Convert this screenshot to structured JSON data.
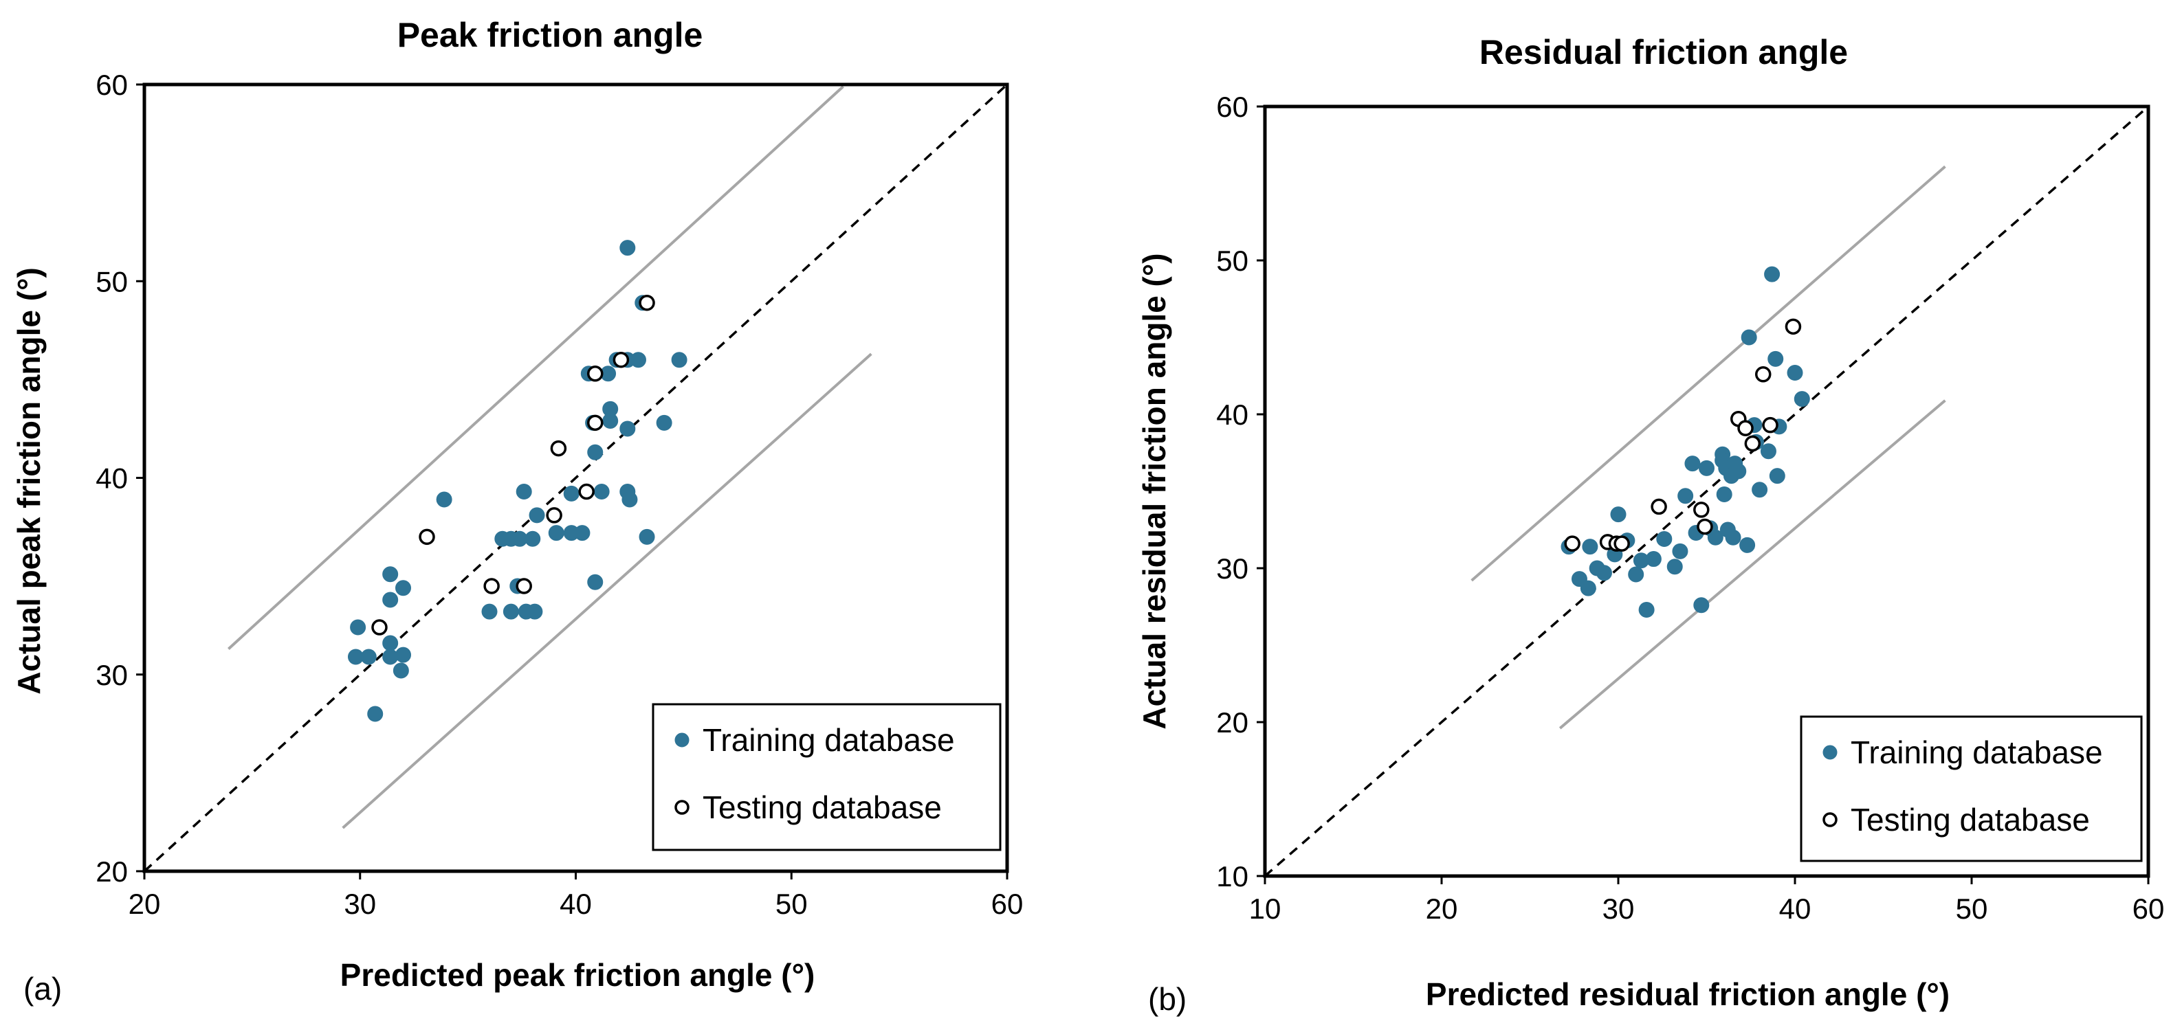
{
  "colors": {
    "training": "#2e7496",
    "testing_fill": "#ffffff",
    "testing_stroke": "#000000",
    "band": "#a6a6a6",
    "identity": "#000000",
    "axis": "#000000"
  },
  "chart_data": [
    {
      "type": "scatter",
      "panel_label": "(a)",
      "title": "Peak friction angle",
      "xlabel": "Predicted peak friction angle (°)",
      "ylabel": "Actual peak friction angle (°)",
      "xlim": [
        20,
        60
      ],
      "ylim": [
        20,
        60
      ],
      "xticks": [
        20,
        30,
        40,
        50,
        60
      ],
      "yticks": [
        20,
        30,
        40,
        50,
        60
      ],
      "legend_position": "bottom-right",
      "identity_line": {
        "x": [
          20,
          60
        ],
        "y": [
          20,
          60
        ]
      },
      "band_lines": [
        {
          "x": [
            23.9,
            52.4
          ],
          "y": [
            31.3,
            59.9
          ]
        },
        {
          "x": [
            29.2,
            53.7
          ],
          "y": [
            22.2,
            46.3
          ]
        }
      ],
      "series": [
        {
          "name": "Training database",
          "marker": "filled",
          "points": [
            [
              29.9,
              32.4
            ],
            [
              29.8,
              30.9
            ],
            [
              30.4,
              30.9
            ],
            [
              30.7,
              28.0
            ],
            [
              31.4,
              35.1
            ],
            [
              31.4,
              33.8
            ],
            [
              31.4,
              31.6
            ],
            [
              31.4,
              30.9
            ],
            [
              31.9,
              30.2
            ],
            [
              32.0,
              31.0
            ],
            [
              32.0,
              34.4
            ],
            [
              33.9,
              38.9
            ],
            [
              36.0,
              33.2
            ],
            [
              36.6,
              36.9
            ],
            [
              37.0,
              36.9
            ],
            [
              37.0,
              33.2
            ],
            [
              37.3,
              34.5
            ],
            [
              37.4,
              36.9
            ],
            [
              37.6,
              39.3
            ],
            [
              37.7,
              33.2
            ],
            [
              38.1,
              33.2
            ],
            [
              38.0,
              36.9
            ],
            [
              38.2,
              38.1
            ],
            [
              39.1,
              37.2
            ],
            [
              39.8,
              39.2
            ],
            [
              39.8,
              37.2
            ],
            [
              40.3,
              37.2
            ],
            [
              40.6,
              45.3
            ],
            [
              40.8,
              42.8
            ],
            [
              40.9,
              41.3
            ],
            [
              40.9,
              34.7
            ],
            [
              41.2,
              39.3
            ],
            [
              41.5,
              45.3
            ],
            [
              41.6,
              43.5
            ],
            [
              41.6,
              42.9
            ],
            [
              41.9,
              46.0
            ],
            [
              42.4,
              51.7
            ],
            [
              42.4,
              46.0
            ],
            [
              42.4,
              42.5
            ],
            [
              42.4,
              39.3
            ],
            [
              42.5,
              38.9
            ],
            [
              42.9,
              46.0
            ],
            [
              43.1,
              48.9
            ],
            [
              43.3,
              37.0
            ],
            [
              44.1,
              42.8
            ],
            [
              44.8,
              46.0
            ]
          ]
        },
        {
          "name": "Testing database",
          "marker": "open",
          "points": [
            [
              30.9,
              32.4
            ],
            [
              33.1,
              37.0
            ],
            [
              36.1,
              34.5
            ],
            [
              37.6,
              34.5
            ],
            [
              39.0,
              38.1
            ],
            [
              39.2,
              41.5
            ],
            [
              40.5,
              39.3
            ],
            [
              40.9,
              45.3
            ],
            [
              40.9,
              42.8
            ],
            [
              42.1,
              46.0
            ],
            [
              43.3,
              48.9
            ]
          ]
        }
      ]
    },
    {
      "type": "scatter",
      "panel_label": "(b)",
      "title": "Residual friction angle",
      "xlabel": "Predicted residual friction angle (°)",
      "ylabel": "Actual residual friction angle (°)",
      "xlim": [
        10,
        60
      ],
      "ylim": [
        10,
        60
      ],
      "xticks": [
        10,
        20,
        30,
        40,
        50,
        60
      ],
      "yticks": [
        10,
        20,
        30,
        40,
        50,
        60
      ],
      "legend_position": "bottom-right",
      "identity_line": {
        "x": [
          10,
          60
        ],
        "y": [
          10,
          60
        ]
      },
      "band_lines": [
        {
          "x": [
            21.7,
            48.5
          ],
          "y": [
            29.2,
            56.1
          ]
        },
        {
          "x": [
            26.7,
            48.5
          ],
          "y": [
            19.6,
            40.9
          ]
        }
      ],
      "series": [
        {
          "name": "Training database",
          "marker": "filled",
          "points": [
            [
              27.2,
              31.4
            ],
            [
              27.8,
              29.3
            ],
            [
              28.3,
              28.7
            ],
            [
              28.4,
              31.4
            ],
            [
              28.8,
              30.0
            ],
            [
              29.2,
              29.7
            ],
            [
              29.8,
              30.9
            ],
            [
              30.0,
              33.5
            ],
            [
              30.5,
              31.8
            ],
            [
              31.0,
              29.6
            ],
            [
              31.3,
              30.5
            ],
            [
              31.6,
              27.3
            ],
            [
              32.0,
              30.6
            ],
            [
              32.6,
              31.9
            ],
            [
              33.2,
              30.1
            ],
            [
              33.5,
              31.1
            ],
            [
              33.8,
              34.7
            ],
            [
              34.2,
              36.8
            ],
            [
              34.4,
              32.3
            ],
            [
              34.7,
              27.6
            ],
            [
              35.0,
              36.5
            ],
            [
              35.2,
              32.6
            ],
            [
              35.5,
              32.0
            ],
            [
              35.9,
              37.4
            ],
            [
              35.9,
              37.0
            ],
            [
              36.0,
              34.8
            ],
            [
              36.1,
              36.5
            ],
            [
              36.2,
              32.5
            ],
            [
              36.4,
              36.0
            ],
            [
              36.5,
              32.0
            ],
            [
              36.6,
              36.8
            ],
            [
              36.8,
              36.3
            ],
            [
              37.3,
              31.5
            ],
            [
              37.4,
              45.0
            ],
            [
              37.7,
              39.3
            ],
            [
              37.8,
              38.2
            ],
            [
              38.0,
              35.1
            ],
            [
              38.5,
              37.6
            ],
            [
              38.7,
              49.1
            ],
            [
              38.9,
              43.6
            ],
            [
              39.0,
              36.0
            ],
            [
              39.1,
              39.2
            ],
            [
              40.0,
              42.7
            ],
            [
              40.4,
              41.0
            ]
          ]
        },
        {
          "name": "Testing database",
          "marker": "open",
          "points": [
            [
              27.4,
              31.6
            ],
            [
              29.4,
              31.7
            ],
            [
              29.9,
              31.6
            ],
            [
              30.2,
              31.6
            ],
            [
              32.3,
              34.0
            ],
            [
              34.7,
              33.8
            ],
            [
              34.9,
              32.7
            ],
            [
              36.8,
              39.7
            ],
            [
              37.2,
              39.1
            ],
            [
              37.6,
              38.1
            ],
            [
              38.2,
              42.6
            ],
            [
              38.6,
              39.3
            ],
            [
              39.9,
              45.7
            ]
          ]
        }
      ]
    }
  ]
}
